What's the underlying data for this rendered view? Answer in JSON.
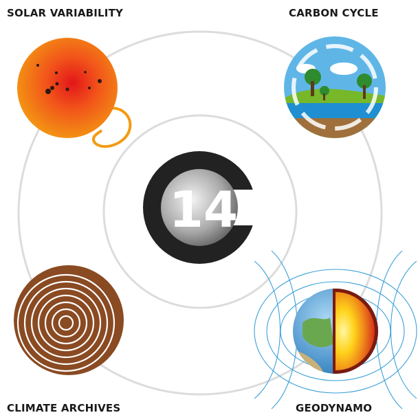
{
  "nodes": [
    {
      "label": "SOLAR VARIABILITY"
    },
    {
      "label": "CARBON CYCLE"
    },
    {
      "label": "CLIMATE ARCHIVES"
    },
    {
      "label": "GEODYNAMO"
    }
  ],
  "center": {
    "label": "14"
  }
}
